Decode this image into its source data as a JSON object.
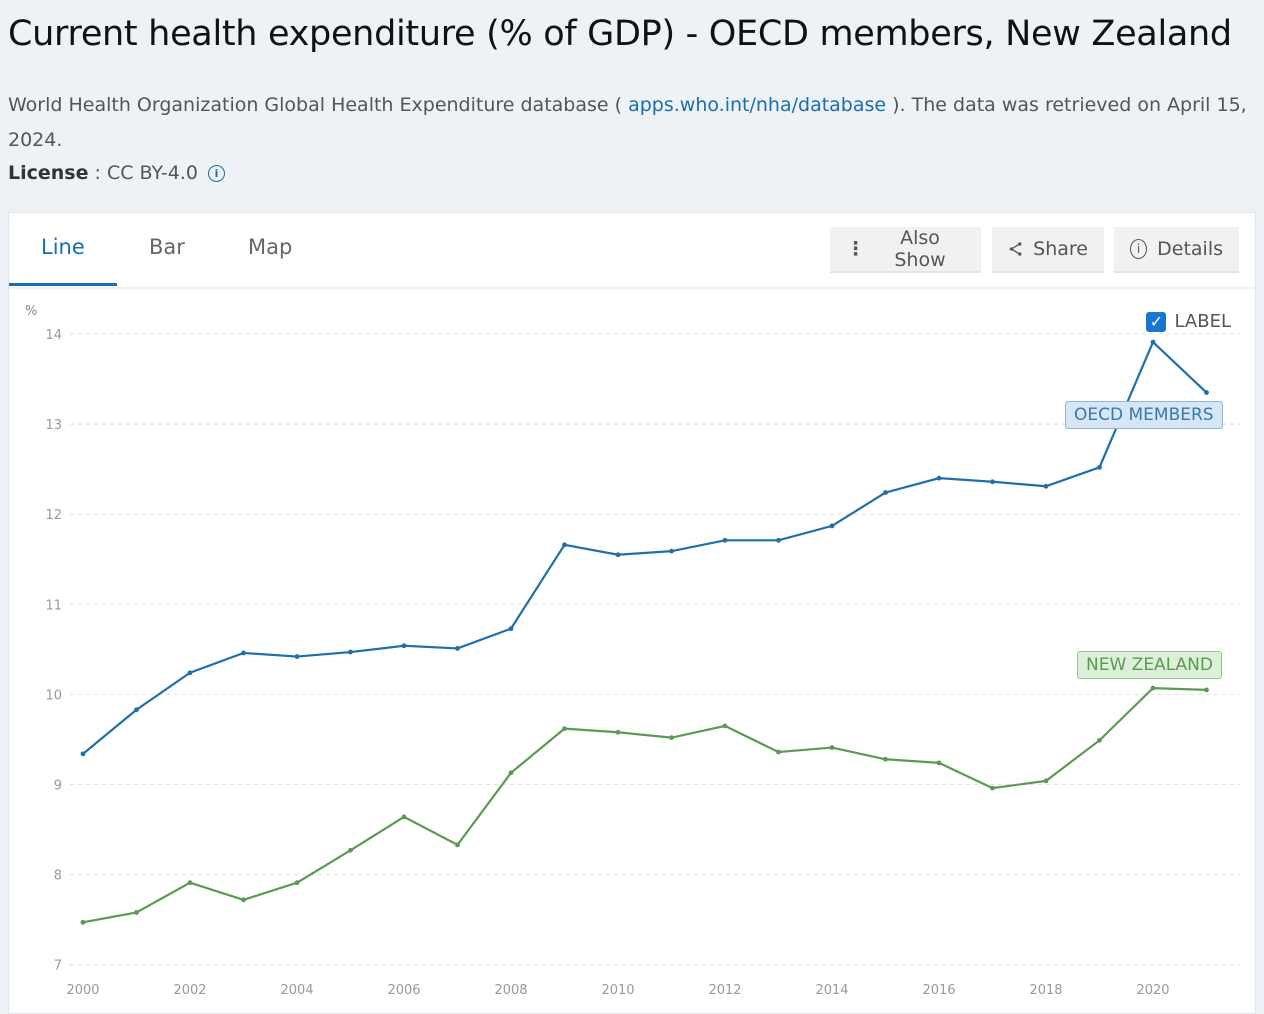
{
  "header": {
    "title": "Current health expenditure (% of GDP) - OECD members, New Zealand",
    "source_prefix": "World Health Organization Global Health Expenditure database ( ",
    "source_link": "apps.who.int/nha/database",
    "source_suffix": " ). The data was retrieved on April 15, 2024.",
    "license_label": "License",
    "license_value": " : CC BY-4.0"
  },
  "tabs": [
    {
      "label": "Line",
      "active": true
    },
    {
      "label": "Bar"
    },
    {
      "label": "Map"
    }
  ],
  "toolbar": {
    "also_show": "Also Show",
    "share": "Share",
    "details": "Details"
  },
  "label_toggle": {
    "label": "LABEL",
    "checked": true
  },
  "chart_data": {
    "type": "line",
    "ylabel": "%",
    "ylim": [
      7,
      14
    ],
    "yticks": [
      7,
      8,
      9,
      10,
      11,
      12,
      13,
      14
    ],
    "xticks": [
      2000,
      2002,
      2004,
      2006,
      2008,
      2010,
      2012,
      2014,
      2016,
      2018,
      2020
    ],
    "grid": true,
    "x": [
      2000,
      2001,
      2002,
      2003,
      2004,
      2005,
      2006,
      2007,
      2008,
      2009,
      2010,
      2011,
      2012,
      2013,
      2014,
      2015,
      2016,
      2017,
      2018,
      2019,
      2020,
      2021
    ],
    "series": [
      {
        "name": "OECD MEMBERS",
        "color": "#1f6fa8",
        "values": [
          9.34,
          9.83,
          10.24,
          10.46,
          10.42,
          10.47,
          10.54,
          10.51,
          10.73,
          11.66,
          11.55,
          11.59,
          11.71,
          11.71,
          11.87,
          12.24,
          12.4,
          12.36,
          12.31,
          12.52,
          13.91,
          13.35
        ]
      },
      {
        "name": "NEW ZEALAND",
        "color": "#5b9a52",
        "values": [
          7.47,
          7.58,
          7.91,
          7.72,
          7.91,
          8.27,
          8.64,
          8.33,
          9.13,
          9.62,
          9.58,
          9.52,
          9.65,
          9.36,
          9.41,
          9.28,
          9.24,
          8.96,
          9.04,
          9.49,
          10.07,
          10.05
        ]
      }
    ]
  }
}
